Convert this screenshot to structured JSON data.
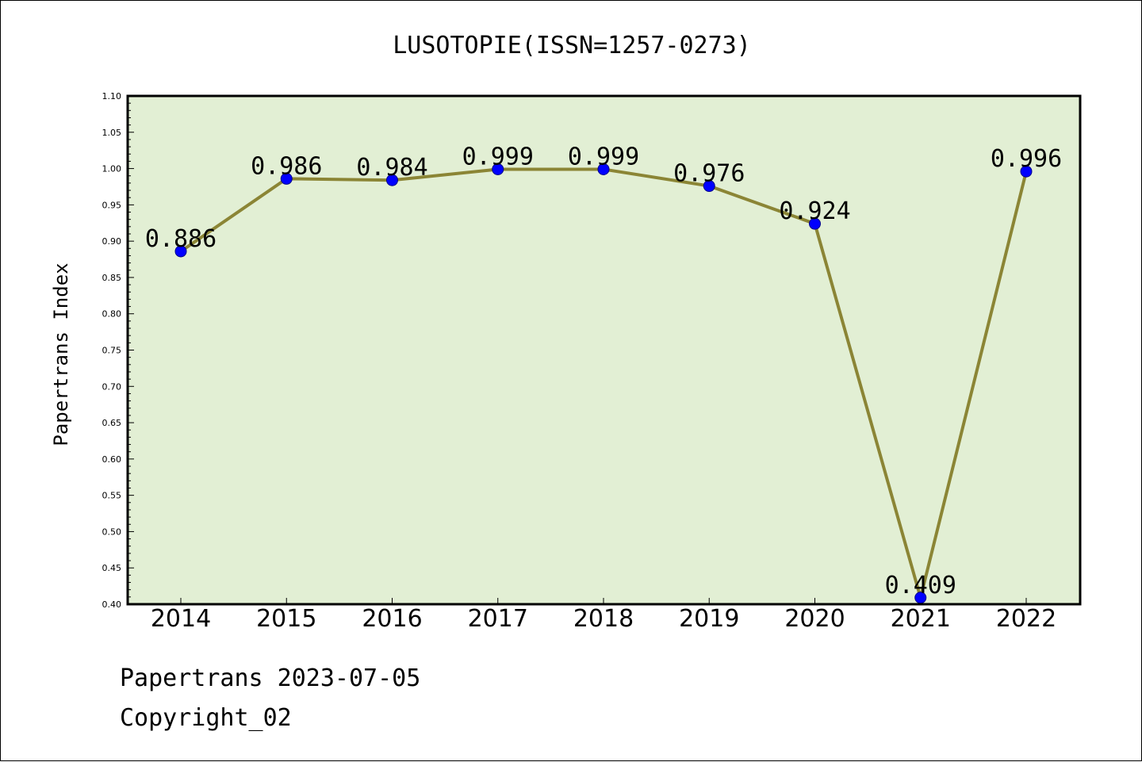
{
  "chart_data": {
    "type": "line",
    "title": "LUSOTOPIE(ISSN=1257-0273)",
    "xlabel": "",
    "ylabel": "Papertrans Index",
    "categories": [
      "2014",
      "2015",
      "2016",
      "2017",
      "2018",
      "2019",
      "2020",
      "2021",
      "2022"
    ],
    "series": [
      {
        "values": [
          0.886,
          0.986,
          0.984,
          0.999,
          0.999,
          0.976,
          0.924,
          0.409,
          0.996
        ]
      }
    ],
    "data_labels": [
      "0.886",
      "0.986",
      "0.984",
      "0.999",
      "0.999",
      "0.976",
      "0.924",
      "0.409",
      "0.996"
    ],
    "ylim": [
      0.4,
      1.1
    ],
    "ytick_labels": [
      "0.40",
      "0.45",
      "0.50",
      "0.55",
      "0.60",
      "0.65",
      "0.70",
      "0.75",
      "0.80",
      "0.85",
      "0.90",
      "0.95",
      "1.00",
      "1.05",
      "1.10"
    ],
    "grid": false,
    "legend": "none",
    "colors": {
      "plot_background": "#e2efd4",
      "line": "#8b8535",
      "marker": "#0000ff"
    }
  },
  "footer": {
    "line1": "Papertrans 2023-07-05",
    "line2": "Copyright_02"
  }
}
